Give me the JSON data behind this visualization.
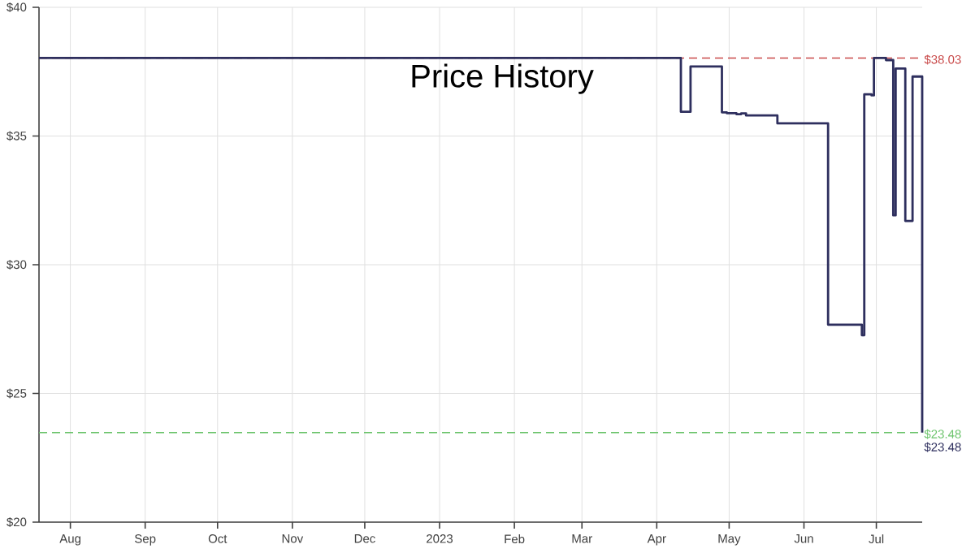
{
  "chart_data": {
    "type": "step",
    "title": "Price History",
    "x": [
      "2022-07-19",
      "2023-04-11",
      "2023-04-15",
      "2023-04-28",
      "2023-04-30",
      "2023-05-04",
      "2023-05-06",
      "2023-05-08",
      "2023-05-21",
      "2023-06-11",
      "2023-06-25",
      "2023-06-26",
      "2023-06-29",
      "2023-06-30",
      "2023-07-05",
      "2023-07-08",
      "2023-07-09",
      "2023-07-13",
      "2023-07-16",
      "2023-07-20"
    ],
    "series": [
      {
        "color": "#2e2f5e",
        "values": [
          38.03,
          35.94,
          37.7,
          35.92,
          35.89,
          35.85,
          35.88,
          35.8,
          35.49,
          27.67,
          27.26,
          36.62,
          36.58,
          38.03,
          37.95,
          31.92,
          37.62,
          31.7,
          37.31,
          23.48
        ]
      }
    ],
    "xlim": [
      "2022-07-19",
      "2023-07-20"
    ],
    "xticks": [
      {
        "value": "2022-08-01",
        "label": "Aug"
      },
      {
        "value": "2022-09-01",
        "label": "Sep"
      },
      {
        "value": "2022-10-01",
        "label": "Oct"
      },
      {
        "value": "2022-11-01",
        "label": "Nov"
      },
      {
        "value": "2022-12-01",
        "label": "Dec"
      },
      {
        "value": "2023-01-01",
        "label": "2023"
      },
      {
        "value": "2023-02-01",
        "label": "Feb"
      },
      {
        "value": "2023-03-01",
        "label": "Mar"
      },
      {
        "value": "2023-04-01",
        "label": "Apr"
      },
      {
        "value": "2023-05-01",
        "label": "May"
      },
      {
        "value": "2023-06-01",
        "label": "Jun"
      },
      {
        "value": "2023-07-01",
        "label": "Jul"
      }
    ],
    "ylim": [
      20,
      40
    ],
    "yticks": [
      {
        "value": 20,
        "label": "$20"
      },
      {
        "value": 25,
        "label": "$25"
      },
      {
        "value": 30,
        "label": "$30"
      },
      {
        "value": 35,
        "label": "$35"
      },
      {
        "value": 40,
        "label": "$40"
      }
    ],
    "grid": true,
    "ref_lines": [
      {
        "axis": "y",
        "value": 38.03,
        "label": "$38.03",
        "color": "#c94a4a",
        "line_style": "dashed"
      },
      {
        "axis": "y",
        "value": 23.48,
        "label": "$23.48",
        "color": "#6cc46c",
        "line_style": "dashed"
      }
    ],
    "annotations": [
      {
        "text": "$23.48",
        "x": "2023-07-20",
        "y": 23.48
      }
    ]
  }
}
